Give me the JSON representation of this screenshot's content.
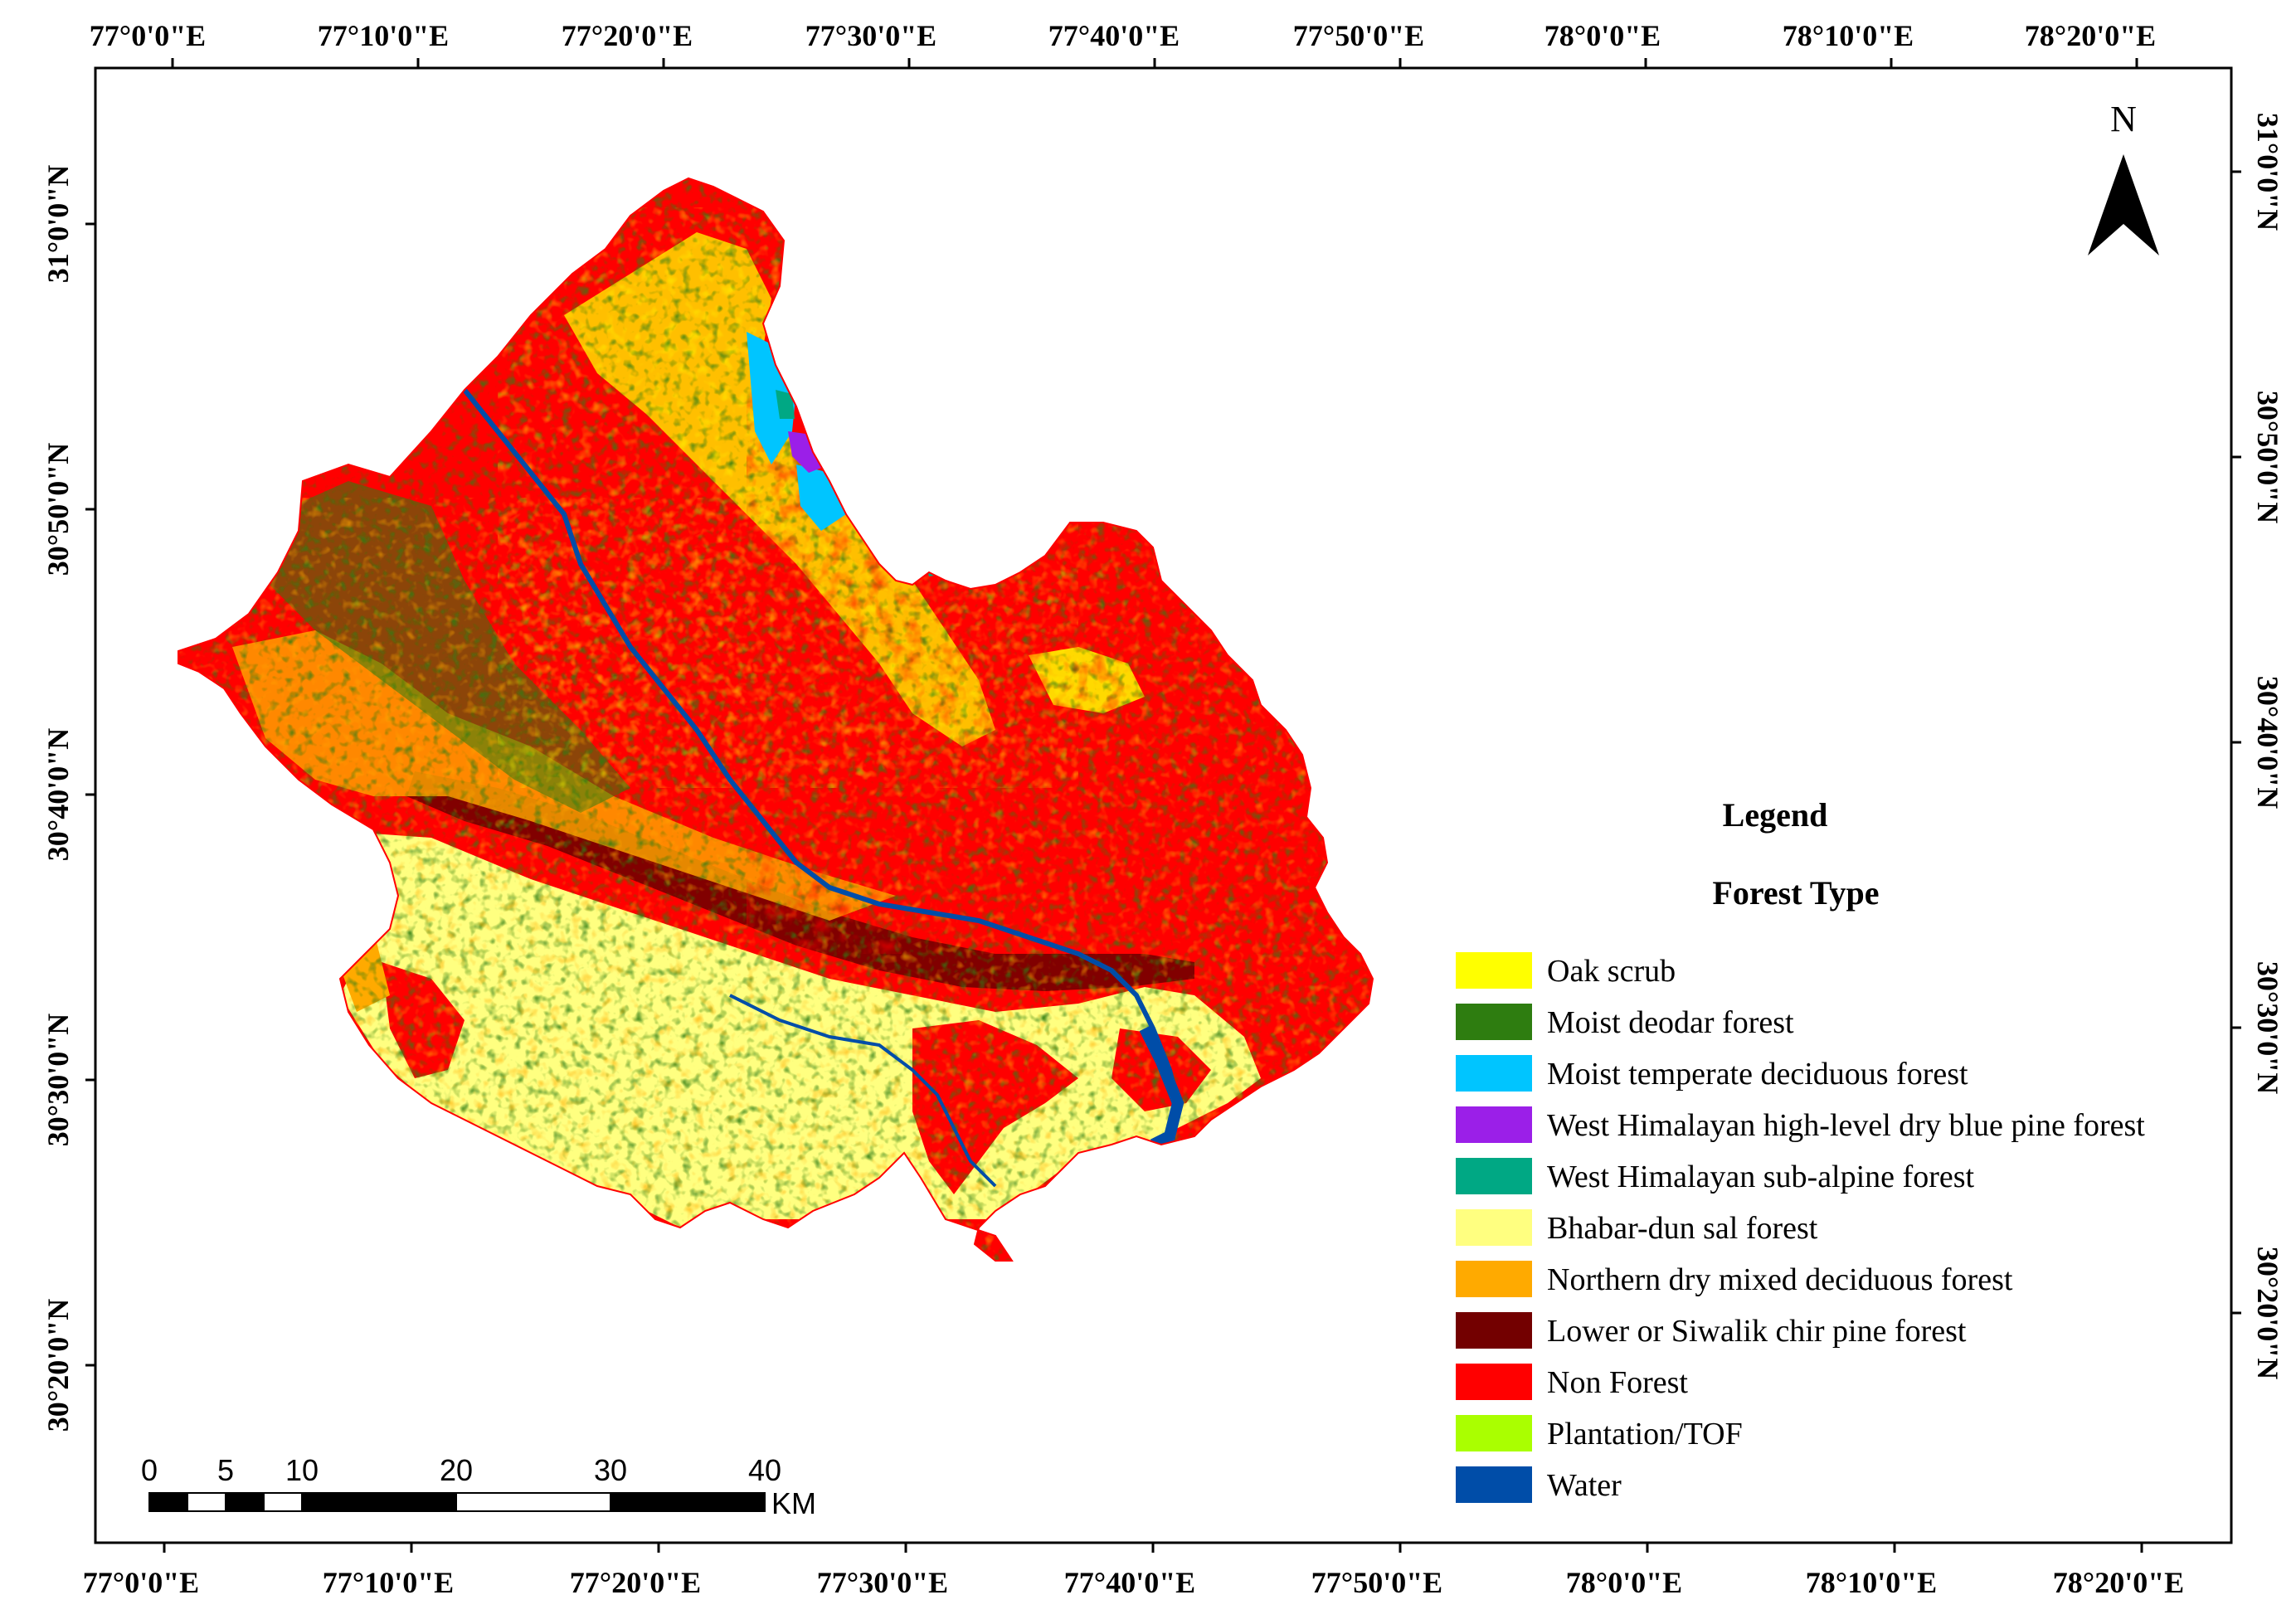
{
  "map": {
    "top_lon_labels": [
      "77°0'0\"E",
      "77°10'0\"E",
      "77°20'0\"E",
      "77°30'0\"E",
      "77°40'0\"E",
      "77°50'0\"E",
      "78°0'0\"E",
      "78°10'0\"E",
      "78°20'0\"E"
    ],
    "bottom_lon_labels": [
      "77°0'0\"E",
      "77°10'0\"E",
      "77°20'0\"E",
      "77°30'0\"E",
      "77°40'0\"E",
      "77°50'0\"E",
      "78°0'0\"E",
      "78°10'0\"E",
      "78°20'0\"E"
    ],
    "left_lat_labels": [
      "31°0'0\"N",
      "30°50'0\"N",
      "30°40'0\"N",
      "30°30'0\"N",
      "30°20'0\"N"
    ],
    "right_lat_labels": [
      "31°0'0\"N",
      "30°50'0\"N",
      "30°40'0\"N",
      "30°30'0\"N",
      "30°20'0\"N"
    ],
    "north_arrow_label": "N",
    "legend": {
      "title": "Legend",
      "subtitle": "Forest Type",
      "items": [
        {
          "label": "Oak scrub",
          "color": "#ffff00"
        },
        {
          "label": "Moist deodar forest",
          "color": "#2e7d10"
        },
        {
          "label": "Moist temperate deciduous forest",
          "color": "#00c5ff"
        },
        {
          "label": "West Himalayan high-level dry blue pine forest",
          "color": "#9b1fe8"
        },
        {
          "label": "West Himalayan sub-alpine forest",
          "color": "#00a884"
        },
        {
          "label": "Bhabar-dun sal forest",
          "color": "#ffff80"
        },
        {
          "label": "Northern dry mixed deciduous forest",
          "color": "#ffaa00"
        },
        {
          "label": "Lower or Siwalik chir pine forest",
          "color": "#730000"
        },
        {
          "label": "Non Forest",
          "color": "#ff0000"
        },
        {
          "label": "Plantation/TOF",
          "color": "#aaff00"
        },
        {
          "label": "Water",
          "color": "#004da8"
        }
      ]
    },
    "scale_bar": {
      "labels": [
        "0",
        "5",
        "10",
        "20",
        "30",
        "40"
      ],
      "unit": "KM"
    }
  }
}
